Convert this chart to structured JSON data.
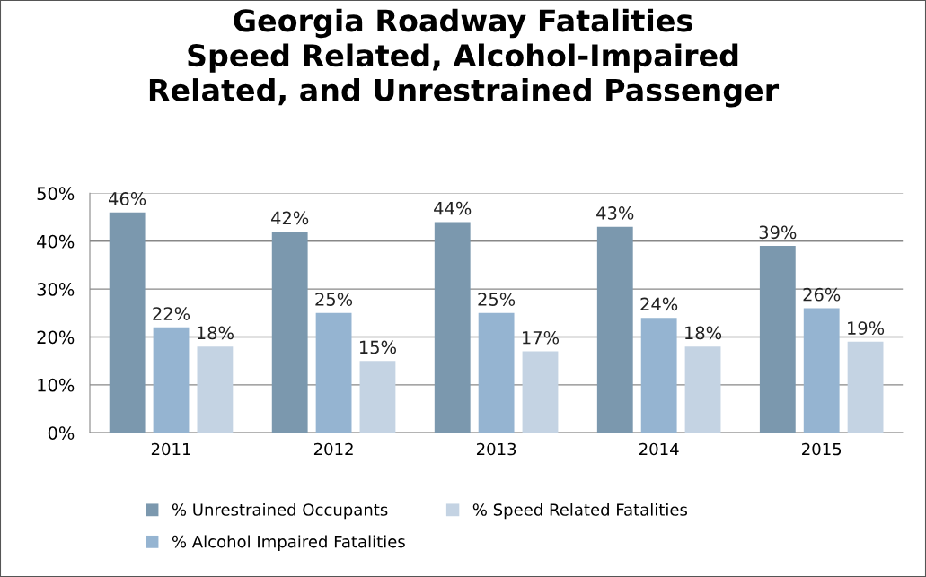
{
  "chart_data": {
    "type": "bar",
    "title": "Georgia Roadway Fatalities\nSpeed Related, Alcohol-Impaired\nRelated, and Unrestrained Passenger",
    "categories": [
      "2011",
      "2012",
      "2013",
      "2014",
      "2015"
    ],
    "series": [
      {
        "name": "% Unrestrained Occupants",
        "color": "#7b98ae",
        "values": [
          46,
          42,
          44,
          43,
          39
        ],
        "value_labels": [
          "46%",
          "42%",
          "44%",
          "43%",
          "39%"
        ]
      },
      {
        "name": "% Alcohol Impaired Fatalities",
        "color": "#95b4d1",
        "values": [
          22,
          25,
          25,
          24,
          26
        ],
        "value_labels": [
          "22%",
          "25%",
          "25%",
          "24%",
          "26%"
        ]
      },
      {
        "name": "% Speed Related Fatalities",
        "color": "#c4d3e3",
        "values": [
          18,
          15,
          17,
          18,
          19
        ],
        "value_labels": [
          "18%",
          "15%",
          "17%",
          "18%",
          "19%"
        ]
      }
    ],
    "ylim": [
      0,
      50
    ],
    "yticks": [
      {
        "value": 0,
        "label": "0%"
      },
      {
        "value": 10,
        "label": "10%"
      },
      {
        "value": 20,
        "label": "20%"
      },
      {
        "value": 30,
        "label": "30%"
      },
      {
        "value": 40,
        "label": "40%"
      },
      {
        "value": 50,
        "label": "50%"
      }
    ],
    "grid": "y",
    "legend": "bottom"
  }
}
